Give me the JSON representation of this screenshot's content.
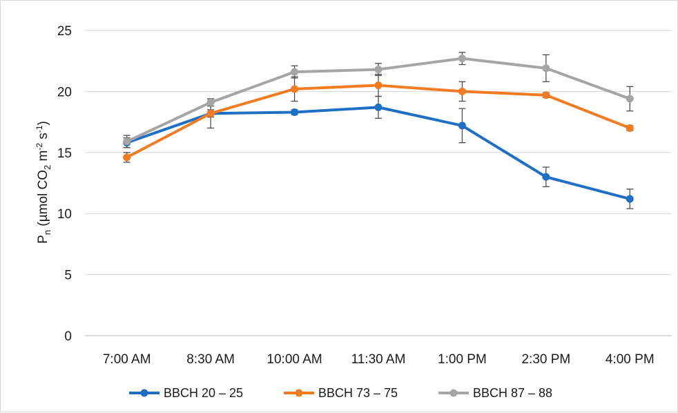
{
  "chart_data": {
    "type": "line",
    "title": "",
    "xlabel": "",
    "ylabel_parts": [
      "P",
      "n",
      " (µmol CO",
      "2",
      " m",
      "-2",
      " s",
      "-1",
      ")"
    ],
    "categories": [
      "7:00 AM",
      "8:30 AM",
      "10:00 AM",
      "11:30 AM",
      "1:00 PM",
      "2:30 PM",
      "4:00 PM"
    ],
    "ylim": [
      0,
      25
    ],
    "yticks": [
      0,
      5,
      10,
      15,
      20,
      25
    ],
    "grid": "horizontal",
    "legend_position": "bottom",
    "series": [
      {
        "name": "BBCH 20 – 25",
        "color": "#1f6fc5",
        "values": [
          15.8,
          18.2,
          18.3,
          18.7,
          17.2,
          13.0,
          11.2
        ],
        "errors": [
          0.4,
          0.3,
          0.2,
          0.9,
          1.4,
          0.8,
          0.8
        ]
      },
      {
        "name": "BBCH 73 – 75",
        "color": "#f37b22",
        "values": [
          14.6,
          18.2,
          20.2,
          20.5,
          20.0,
          19.7,
          17.0
        ],
        "errors": [
          0.4,
          1.2,
          1.0,
          0.9,
          0.8,
          0.2,
          0.2
        ]
      },
      {
        "name": "BBCH 87 – 88",
        "color": "#a5a5a5",
        "values": [
          15.9,
          19.1,
          21.6,
          21.8,
          22.7,
          21.9,
          19.4
        ],
        "errors": [
          0.5,
          0.3,
          0.5,
          0.5,
          0.5,
          1.1,
          1.0
        ]
      }
    ]
  }
}
